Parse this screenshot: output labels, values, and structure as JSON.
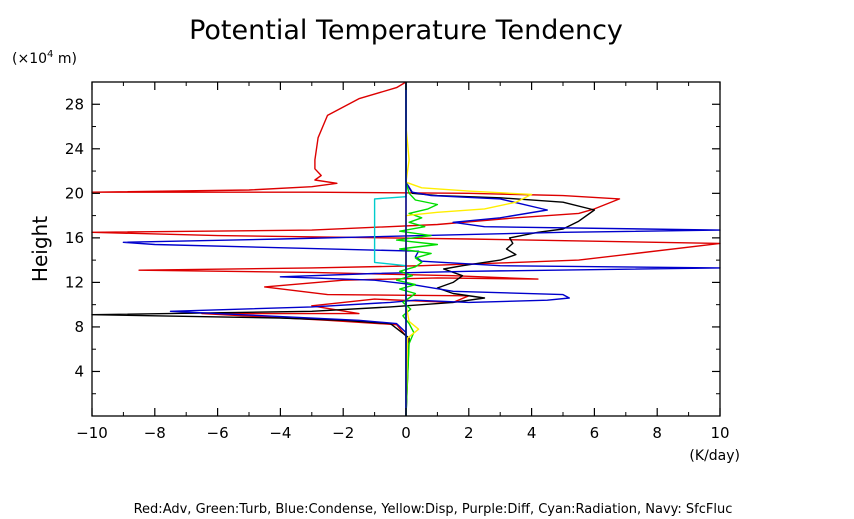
{
  "chart_data": {
    "type": "line",
    "title": "Potential Temperature Tendency",
    "xlabel": "(K/day)",
    "ylabel": "Height",
    "y_unit_prefix": "(×10",
    "y_unit_exp": "4",
    "y_unit_suffix": " m)",
    "legend_text": "Red:Adv, Green:Turb, Blue:Condense, Yellow:Disp, Purple:Diff, Cyan:Radiation, Navy: SfcFluc",
    "xlim": [
      -10,
      10
    ],
    "ylim": [
      0,
      30
    ],
    "xticks": [
      -10,
      -8,
      -6,
      -4,
      -2,
      0,
      2,
      4,
      6,
      8,
      10
    ],
    "xtick_labels": [
      "−10",
      "−8",
      "−6",
      "−4",
      "−2",
      "0",
      "2",
      "4",
      "6",
      "8",
      "10"
    ],
    "yticks": [
      4,
      8,
      12,
      16,
      20,
      24,
      28
    ],
    "ytick_labels": [
      "4",
      "8",
      "12",
      "16",
      "20",
      "24",
      "28"
    ],
    "grid": false,
    "colors": {
      "red": "#dd0000",
      "green": "#00dd00",
      "blue": "#0000cc",
      "yellow": "#ffee00",
      "purple": "#aa00aa",
      "cyan": "#00cccc",
      "navy": "#000080",
      "black": "#000000"
    },
    "series": [
      {
        "color": "red",
        "points": [
          [
            0,
            0
          ],
          [
            0.05,
            7.0
          ],
          [
            -0.3,
            8.2
          ],
          [
            -2.5,
            8.6
          ],
          [
            -4.5,
            8.9
          ],
          [
            -6.5,
            9.2
          ],
          [
            -1.5,
            9.2
          ],
          [
            -3.0,
            9.9
          ],
          [
            -1.0,
            10.5
          ],
          [
            1.5,
            10.2
          ],
          [
            2.0,
            10.8
          ],
          [
            -2.5,
            10.9
          ],
          [
            -4.5,
            11.6
          ],
          [
            -2.0,
            12.2
          ],
          [
            1.0,
            12.4
          ],
          [
            4.2,
            12.3
          ],
          [
            1.5,
            12.6
          ],
          [
            -3.0,
            12.9
          ],
          [
            -8.5,
            13.1
          ],
          [
            -3.0,
            13.3
          ],
          [
            0.5,
            13.5
          ],
          [
            3.5,
            13.8
          ],
          [
            5.5,
            14.0
          ],
          [
            7.0,
            14.5
          ],
          [
            10.0,
            15.5
          ],
          [
            2.0,
            15.9
          ],
          [
            -6.0,
            16.2
          ],
          [
            -10.0,
            16.5
          ],
          [
            -3.0,
            16.7
          ],
          [
            1.0,
            17.2
          ],
          [
            3.5,
            17.8
          ],
          [
            5.5,
            18.2
          ],
          [
            6.0,
            18.6
          ],
          [
            6.8,
            19.5
          ],
          [
            5.0,
            19.8
          ],
          [
            2.0,
            20.0
          ],
          [
            -3.0,
            20.1
          ],
          [
            -10.0,
            20.1
          ],
          [
            -5.0,
            20.3
          ],
          [
            -3.0,
            20.6
          ],
          [
            -2.2,
            20.9
          ],
          [
            -2.9,
            21.2
          ],
          [
            -2.7,
            21.6
          ],
          [
            -2.9,
            22.2
          ],
          [
            -2.9,
            23.0
          ],
          [
            -2.8,
            25.0
          ],
          [
            -2.5,
            27.0
          ],
          [
            -1.5,
            28.5
          ],
          [
            -0.3,
            29.5
          ],
          [
            0,
            30
          ]
        ]
      },
      {
        "color": "black",
        "points": [
          [
            0,
            0
          ],
          [
            0.1,
            7.0
          ],
          [
            -0.5,
            8.3
          ],
          [
            -2.0,
            8.6
          ],
          [
            -4.0,
            8.8
          ],
          [
            -8.0,
            9.0
          ],
          [
            -10.0,
            9.1
          ],
          [
            -3.0,
            9.4
          ],
          [
            -0.5,
            9.8
          ],
          [
            1.5,
            10.2
          ],
          [
            2.5,
            10.6
          ],
          [
            1.5,
            11.0
          ],
          [
            1.0,
            11.5
          ],
          [
            1.5,
            12.0
          ],
          [
            1.8,
            12.6
          ],
          [
            1.2,
            13.2
          ],
          [
            1.8,
            13.5
          ],
          [
            3.0,
            14.0
          ],
          [
            3.5,
            14.5
          ],
          [
            3.2,
            15.0
          ],
          [
            3.4,
            15.5
          ],
          [
            3.3,
            16.0
          ],
          [
            4.2,
            16.5
          ],
          [
            5.0,
            16.8
          ],
          [
            5.5,
            17.5
          ],
          [
            6.0,
            18.5
          ],
          [
            5.0,
            19.2
          ],
          [
            3.0,
            19.6
          ],
          [
            1.0,
            19.8
          ],
          [
            0.2,
            20.0
          ],
          [
            0,
            21
          ],
          [
            0,
            30
          ]
        ]
      },
      {
        "color": "blue",
        "points": [
          [
            0,
            0
          ],
          [
            0,
            7.5
          ],
          [
            -0.3,
            8.3
          ],
          [
            -1.5,
            8.6
          ],
          [
            -4.5,
            9.0
          ],
          [
            -7.5,
            9.4
          ],
          [
            -3.0,
            9.8
          ],
          [
            -0.5,
            10.2
          ],
          [
            0.3,
            10.4
          ],
          [
            2.0,
            10.2
          ],
          [
            4.5,
            10.4
          ],
          [
            5.2,
            10.6
          ],
          [
            5.0,
            10.9
          ],
          [
            1.5,
            11.2
          ],
          [
            0.2,
            11.8
          ],
          [
            -1.0,
            12.2
          ],
          [
            -4.0,
            12.5
          ],
          [
            -1.0,
            12.8
          ],
          [
            2.0,
            13.0
          ],
          [
            10.0,
            13.3
          ],
          [
            3.0,
            13.5
          ],
          [
            0.5,
            13.9
          ],
          [
            0.3,
            14.3
          ],
          [
            0.4,
            14.8
          ],
          [
            -8.0,
            15.4
          ],
          [
            -9.0,
            15.6
          ],
          [
            -4.0,
            15.9
          ],
          [
            0.5,
            16.2
          ],
          [
            5.0,
            16.5
          ],
          [
            10.0,
            16.7
          ],
          [
            2.5,
            17.0
          ],
          [
            1.5,
            17.4
          ],
          [
            3.0,
            17.8
          ],
          [
            4.5,
            18.5
          ],
          [
            3.0,
            19.5
          ],
          [
            0.8,
            19.8
          ],
          [
            0.2,
            20.1
          ],
          [
            0,
            21
          ],
          [
            0,
            30
          ]
        ]
      },
      {
        "color": "green",
        "points": [
          [
            0,
            0
          ],
          [
            0.1,
            6.5
          ],
          [
            0.25,
            7.5
          ],
          [
            0.1,
            8.3
          ],
          [
            -0.1,
            9.0
          ],
          [
            0.15,
            9.6
          ],
          [
            -0.1,
            10.2
          ],
          [
            0.1,
            10.6
          ],
          [
            0.3,
            11.0
          ],
          [
            -0.2,
            11.4
          ],
          [
            0.3,
            11.8
          ],
          [
            -0.3,
            12.2
          ],
          [
            0.2,
            12.6
          ],
          [
            -0.2,
            13.0
          ],
          [
            0.3,
            13.4
          ],
          [
            0.5,
            13.8
          ],
          [
            0.3,
            14.2
          ],
          [
            0.8,
            14.6
          ],
          [
            -0.2,
            15.0
          ],
          [
            1.0,
            15.4
          ],
          [
            -0.3,
            15.8
          ],
          [
            0.8,
            16.2
          ],
          [
            -0.2,
            16.6
          ],
          [
            0.6,
            17.0
          ],
          [
            0.1,
            17.4
          ],
          [
            0.5,
            17.8
          ],
          [
            0.1,
            18.2
          ],
          [
            0.7,
            18.6
          ],
          [
            1.0,
            19.0
          ],
          [
            0.3,
            19.4
          ],
          [
            0.1,
            20.0
          ],
          [
            0,
            21
          ],
          [
            0,
            30
          ]
        ]
      },
      {
        "color": "yellow",
        "points": [
          [
            0,
            0
          ],
          [
            0.05,
            7.0
          ],
          [
            0.4,
            7.8
          ],
          [
            0.1,
            8.5
          ],
          [
            0,
            10
          ],
          [
            0,
            18.0
          ],
          [
            1.0,
            18.3
          ],
          [
            2.5,
            18.6
          ],
          [
            3.5,
            19.2
          ],
          [
            4.0,
            19.9
          ],
          [
            2.0,
            20.2
          ],
          [
            0.5,
            20.5
          ],
          [
            0,
            21
          ],
          [
            0.1,
            23
          ],
          [
            0,
            26
          ],
          [
            0,
            30
          ]
        ]
      },
      {
        "color": "cyan",
        "points": [
          [
            0,
            0
          ],
          [
            0,
            13.5
          ],
          [
            -1.0,
            13.8
          ],
          [
            -1.0,
            15.5
          ],
          [
            -1.0,
            17.5
          ],
          [
            -1.0,
            19.5
          ],
          [
            -0.5,
            19.6
          ],
          [
            0,
            19.7
          ],
          [
            0,
            30
          ]
        ]
      },
      {
        "color": "navy",
        "points": [
          [
            0,
            0
          ],
          [
            0,
            30
          ]
        ]
      }
    ]
  }
}
